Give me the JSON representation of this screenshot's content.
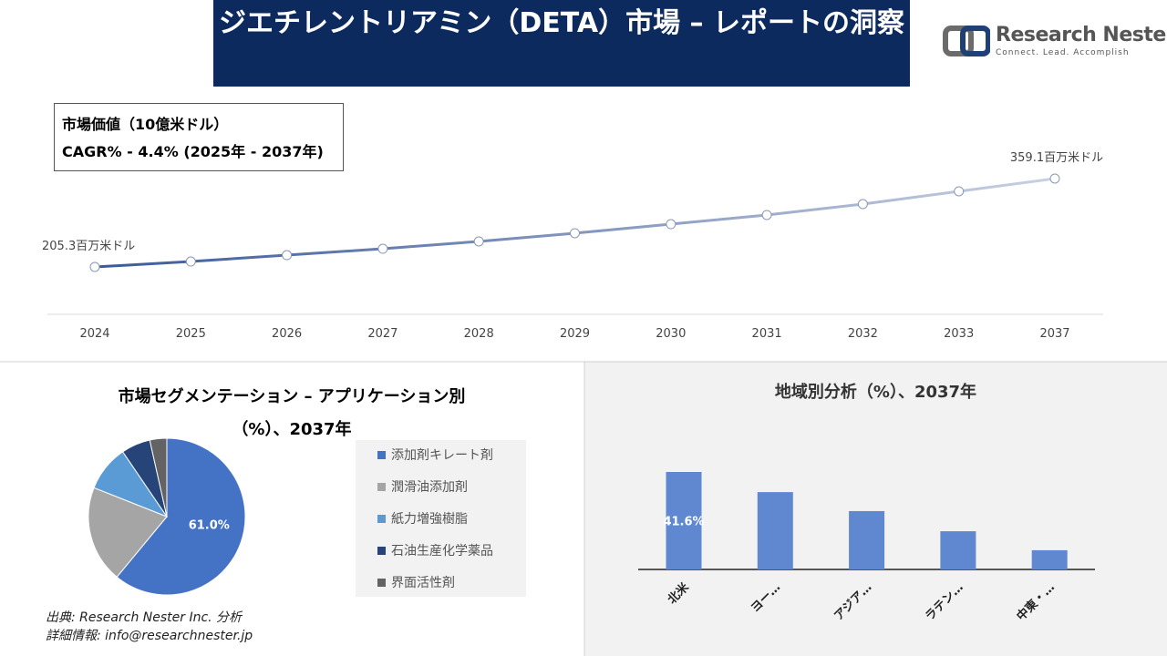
{
  "header": {
    "title": "ジエチレントリアミン（DETA）市場 – レポートの洞察",
    "logo_name": "Research Nester",
    "logo_tagline": "Connect. Lead. Accomplish"
  },
  "chart_data": [
    {
      "type": "line",
      "annotations": [
        "市場価値（10億米ドル）",
        "CAGR% - 4.4% (2025年 - 2037年)"
      ],
      "x": [
        "2024",
        "2025",
        "2026",
        "2027",
        "2028",
        "2029",
        "2030",
        "2031",
        "2032",
        "2033",
        "2037"
      ],
      "values": [
        205.3,
        214.8,
        225.9,
        237.0,
        249.7,
        264.0,
        279.8,
        295.7,
        314.7,
        336.9,
        359.1
      ],
      "value_labels": [
        "205.3百万米ドル",
        null,
        null,
        null,
        null,
        null,
        null,
        null,
        null,
        null,
        "359.1百万米ドル"
      ],
      "colors": [
        "#3b5a9a",
        "#c9d0e2"
      ]
    },
    {
      "type": "pie",
      "title": "市場セグメンテーション – アプリケーション別（%）、2037年",
      "categories": [
        "添加剤キレート剤",
        "潤滑油添加剤",
        "紙力増強樹脂",
        "石油生産化学薬品",
        "界面活性剤"
      ],
      "values": [
        61.0,
        20.0,
        9.5,
        6.0,
        3.5
      ],
      "value_labels": [
        "61.0%",
        null,
        null,
        null,
        null
      ],
      "colors": [
        "#4472c4",
        "#a5a5a5",
        "#5b9bd5",
        "#264478",
        "#636363"
      ]
    },
    {
      "type": "bar",
      "title": "地域別分析（%）、2037年",
      "categories": [
        "北米",
        "ヨー…",
        "アジア…",
        "ラテン…",
        "中東・…"
      ],
      "values": [
        41.6,
        33.0,
        24.9,
        16.3,
        8.2
      ],
      "value_labels": [
        "41.6%",
        null,
        null,
        null,
        null
      ],
      "color": "#6088d0"
    }
  ],
  "footer": {
    "source": "出典: Research Nester Inc. 分析",
    "contact": "詳細情報: info@researchnester.jp"
  }
}
